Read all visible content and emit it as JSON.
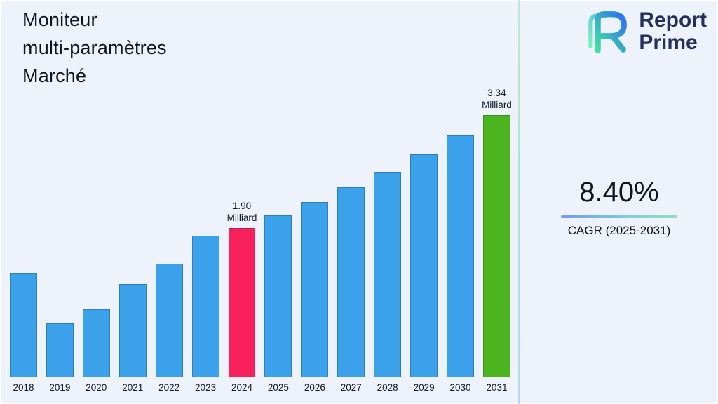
{
  "title": {
    "lines": [
      "Moniteur",
      "multi-paramètres",
      "Marché"
    ]
  },
  "logo": {
    "text_top": "Report",
    "text_bottom": "Prime",
    "mark_gradient": [
      "#3fe3a0",
      "#2e6ef0"
    ]
  },
  "stats": {
    "cagr_value": "8.40%",
    "cagr_label": "CAGR (2025-2031)"
  },
  "chart_data": {
    "type": "bar",
    "title": "Moniteur multi-paramètres Marché",
    "unit": "Milliard",
    "xlabel": "",
    "ylabel": "",
    "ylim": [
      0,
      3.6
    ],
    "grid": false,
    "legend": false,
    "categories": [
      "2018",
      "2019",
      "2020",
      "2021",
      "2022",
      "2023",
      "2024",
      "2025",
      "2026",
      "2027",
      "2028",
      "2029",
      "2030",
      "2031"
    ],
    "values": [
      1.33,
      0.69,
      0.87,
      1.19,
      1.45,
      1.8,
      1.9,
      2.06,
      2.23,
      2.42,
      2.62,
      2.84,
      3.08,
      3.34
    ],
    "bar_default_color": "#3aa1ea",
    "highlights": {
      "2024": {
        "color": "#f8215c",
        "label_lines": [
          "1.90",
          "Milliard"
        ]
      },
      "2031": {
        "color": "#4cb41e",
        "label_lines": [
          "3.34",
          "Milliard"
        ]
      }
    }
  }
}
